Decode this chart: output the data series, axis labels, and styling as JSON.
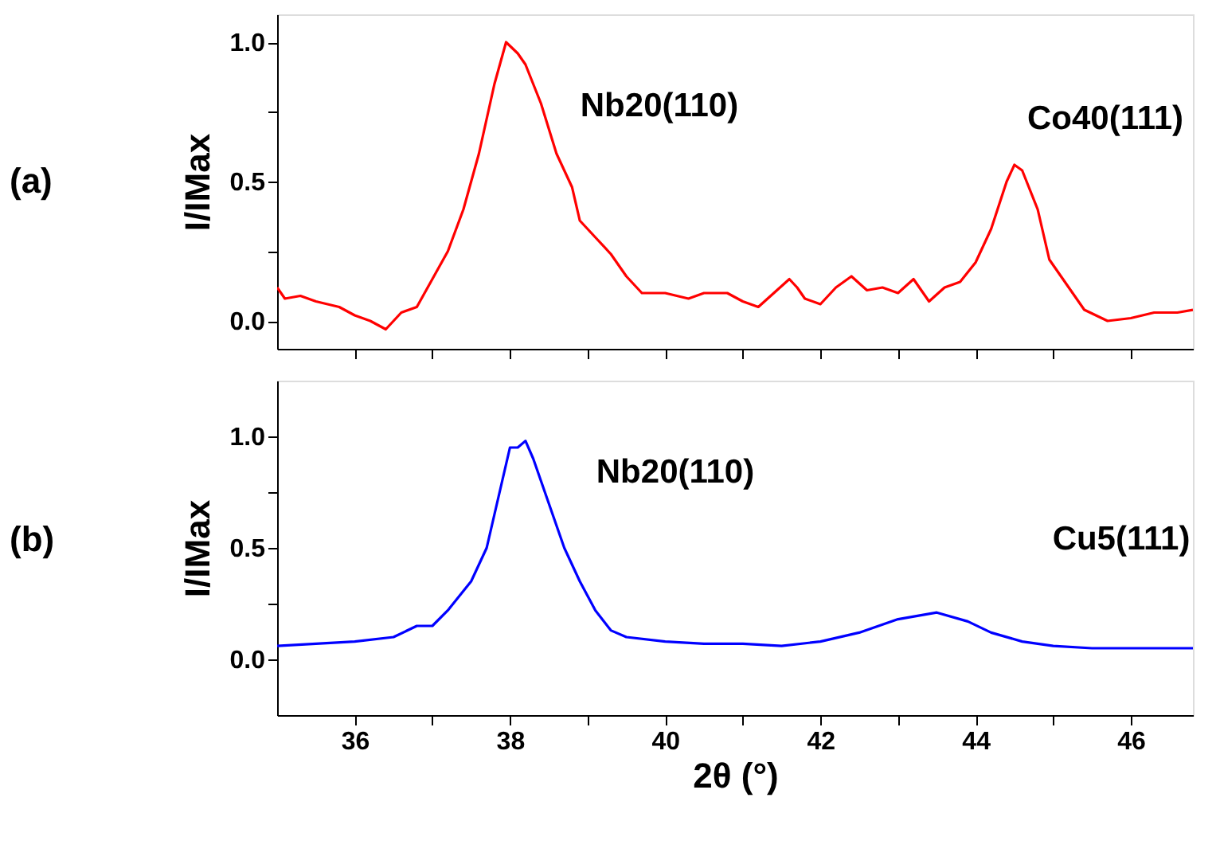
{
  "chart_data": [
    {
      "type": "line",
      "ylabel": "I/IMax",
      "xlim": [
        35,
        46.8
      ],
      "ylim": [
        -0.1,
        1.1
      ],
      "xticks": [
        36,
        {
          "value": 37,
          "label": null
        },
        38,
        {
          "value": 39,
          "label": null
        },
        40,
        {
          "value": 41,
          "label": null
        },
        42,
        {
          "value": 43,
          "label": null
        },
        44,
        {
          "value": 45,
          "label": null
        },
        46
      ],
      "yticks": [
        {
          "value": 0,
          "label": "0.0"
        },
        {
          "value": 0.25,
          "label": null
        },
        0.5,
        {
          "value": 0.75,
          "label": null
        },
        {
          "value": 1,
          "label": "1.0"
        }
      ],
      "tick_labels": "y",
      "grid": false,
      "marker": "none",
      "line_style": "solid",
      "annotations": [
        "(a)",
        "Nb20(110)",
        "Co40(111)"
      ],
      "series": [
        {
          "color": "#ff0000",
          "x": [
            35.0,
            35.1,
            35.3,
            35.5,
            35.8,
            36.0,
            36.2,
            36.4,
            36.6,
            36.8,
            37.0,
            37.2,
            37.4,
            37.6,
            37.8,
            37.95,
            38.1,
            38.2,
            38.4,
            38.6,
            38.8,
            38.9,
            39.1,
            39.3,
            39.5,
            39.7,
            40.0,
            40.3,
            40.5,
            40.8,
            41.0,
            41.2,
            41.4,
            41.6,
            41.7,
            41.8,
            42.0,
            42.2,
            42.4,
            42.6,
            42.8,
            43.0,
            43.2,
            43.4,
            43.6,
            43.8,
            44.0,
            44.2,
            44.4,
            44.5,
            44.6,
            44.8,
            44.95,
            45.2,
            45.4,
            45.7,
            46.0,
            46.3,
            46.6,
            46.8
          ],
          "values": [
            0.12,
            0.08,
            0.09,
            0.07,
            0.05,
            0.02,
            0.0,
            -0.03,
            0.03,
            0.05,
            0.15,
            0.25,
            0.4,
            0.6,
            0.85,
            1.0,
            0.96,
            0.92,
            0.78,
            0.6,
            0.48,
            0.36,
            0.3,
            0.24,
            0.16,
            0.1,
            0.1,
            0.08,
            0.1,
            0.1,
            0.07,
            0.05,
            0.1,
            0.15,
            0.12,
            0.08,
            0.06,
            0.12,
            0.16,
            0.11,
            0.12,
            0.1,
            0.15,
            0.07,
            0.12,
            0.14,
            0.21,
            0.33,
            0.5,
            0.56,
            0.54,
            0.4,
            0.22,
            0.12,
            0.04,
            0.0,
            0.01,
            0.03,
            0.03,
            0.04
          ]
        }
      ]
    },
    {
      "type": "line",
      "xlabel": "2θ (°)",
      "ylabel": "I/IMax",
      "xlim": [
        35,
        46.8
      ],
      "ylim": [
        -0.25,
        1.25
      ],
      "xticks": [
        36,
        {
          "value": 37,
          "label": null
        },
        38,
        {
          "value": 39,
          "label": null
        },
        40,
        {
          "value": 41,
          "label": null
        },
        42,
        {
          "value": 43,
          "label": null
        },
        44,
        {
          "value": 45,
          "label": null
        },
        46
      ],
      "yticks": [
        {
          "value": 0,
          "label": "0.0"
        },
        {
          "value": 0.25,
          "label": null
        },
        0.5,
        {
          "value": 0.75,
          "label": null
        },
        {
          "value": 1,
          "label": "1.0"
        }
      ],
      "grid": false,
      "marker": "none",
      "line_style": "solid",
      "annotations": [
        "(b)",
        "Nb20(110)",
        "Cu5(111)"
      ],
      "series": [
        {
          "color": "#0000ff",
          "x": [
            35.0,
            35.5,
            36.0,
            36.5,
            36.8,
            37.0,
            37.2,
            37.5,
            37.7,
            37.8,
            37.9,
            38.0,
            38.1,
            38.2,
            38.3,
            38.5,
            38.7,
            38.9,
            39.1,
            39.3,
            39.5,
            40.0,
            40.5,
            41.0,
            41.5,
            42.0,
            42.5,
            43.0,
            43.5,
            43.9,
            44.2,
            44.6,
            45.0,
            45.5,
            46.0,
            46.5,
            46.8
          ],
          "values": [
            0.06,
            0.07,
            0.08,
            0.1,
            0.15,
            0.15,
            0.22,
            0.35,
            0.5,
            0.65,
            0.8,
            0.95,
            0.95,
            0.98,
            0.9,
            0.7,
            0.5,
            0.35,
            0.22,
            0.13,
            0.1,
            0.08,
            0.07,
            0.07,
            0.06,
            0.08,
            0.12,
            0.18,
            0.21,
            0.17,
            0.12,
            0.08,
            0.06,
            0.05,
            0.05,
            0.05,
            0.05
          ]
        }
      ]
    }
  ]
}
